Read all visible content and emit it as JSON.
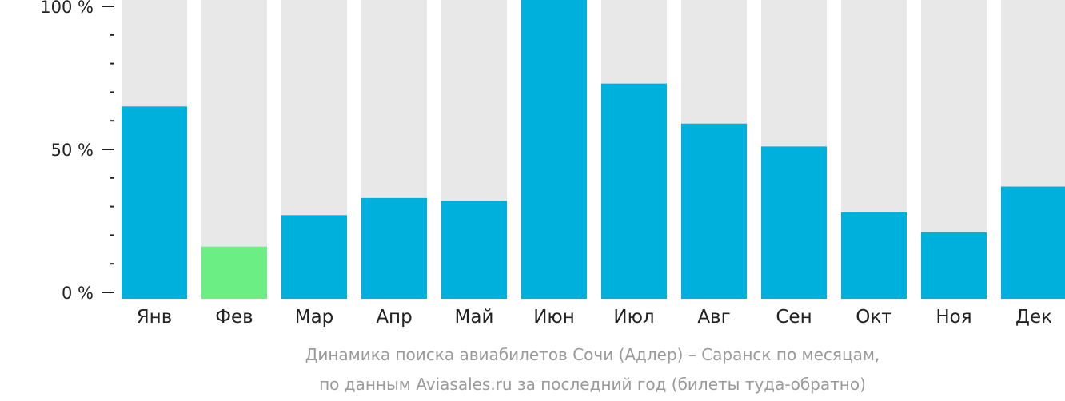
{
  "chart_data": {
    "type": "bar",
    "categories": [
      "Янв",
      "Фев",
      "Мар",
      "Апр",
      "Май",
      "Июн",
      "Июл",
      "Авг",
      "Сен",
      "Окт",
      "Ноя",
      "Дек"
    ],
    "values": [
      65,
      16,
      27,
      33,
      32,
      100,
      73,
      59,
      51,
      28,
      21,
      37
    ],
    "ylim": [
      0,
      100
    ],
    "yticks": [
      {
        "value": 100,
        "label": "100 %"
      },
      {
        "value": 50,
        "label": "50 %"
      },
      {
        "value": 0,
        "label": "0 %"
      }
    ],
    "minor_tick_step": 10,
    "highlight_index": 1,
    "colors": {
      "bar": "#00b0dc",
      "highlight": "#6bef85",
      "background_bar": "#e8e8e8",
      "axis": "#222222",
      "caption": "#9a9a9a"
    },
    "caption": [
      "Динамика поиска авиабилетов Сочи (Адлер) – Саранск по месяцам,",
      "по данным Aviasales.ru за последний год (билеты туда-обратно)"
    ],
    "grid": false,
    "legend": "none"
  }
}
